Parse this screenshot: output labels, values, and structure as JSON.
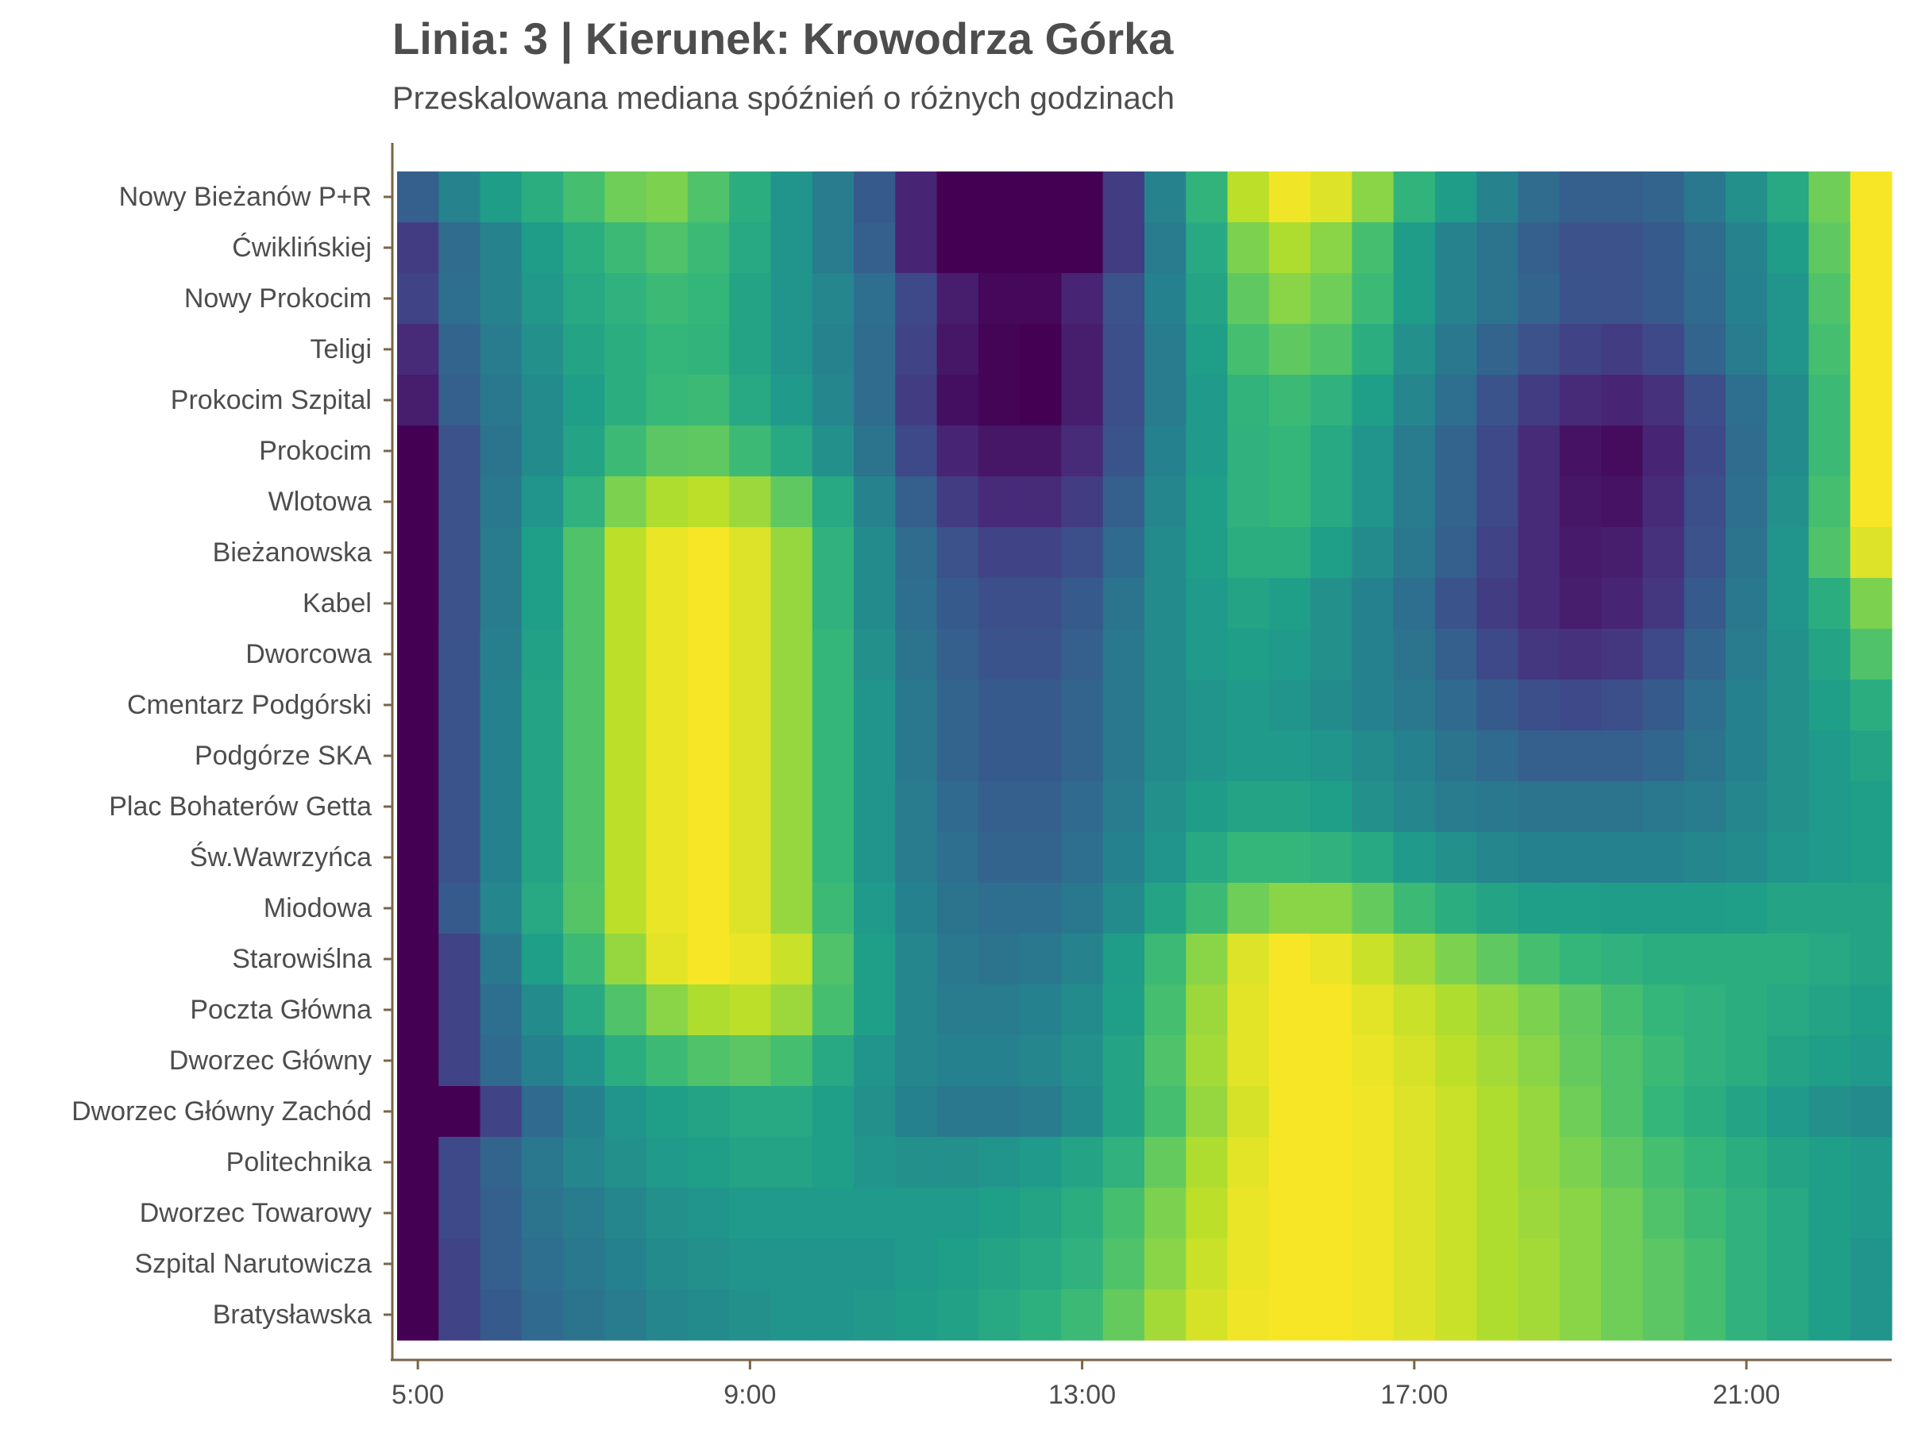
{
  "chart_data": {
    "type": "heatmap",
    "title": "Linia: 3 | Kierunek: Krowodrza Górka",
    "subtitle": "Przeskalowana mediana spóźnień o różnych godzinach",
    "xlabel": "",
    "ylabel": "",
    "colormap": "viridis",
    "grid": false,
    "x_hours": [
      5,
      5.5,
      6,
      6.5,
      7,
      7.5,
      8,
      8.5,
      9,
      9.5,
      10,
      10.5,
      11,
      11.5,
      12,
      12.5,
      13,
      13.5,
      14,
      14.5,
      15,
      15.5,
      16,
      16.5,
      17,
      17.5,
      18,
      18.5,
      19,
      19.5,
      20,
      20.5,
      21,
      21.5,
      22,
      22.5
    ],
    "x_ticks": [
      "5:00",
      "9:00",
      "13:00",
      "17:00",
      "21:00"
    ],
    "x_tick_hours": [
      5,
      9,
      13,
      17,
      21
    ],
    "xlim": [
      4.75,
      22.75
    ],
    "stops": [
      "Nowy Bieżanów P+R",
      "Ćwiklińskiej",
      "Nowy Prokocim",
      "Teligi",
      "Prokocim Szpital",
      "Prokocim",
      "Wlotowa",
      "Bieżanowska",
      "Kabel",
      "Dworcowa",
      "Cmentarz Podgórski",
      "Podgórze SKA",
      "Plac Bohaterów Getta",
      "Św.Wawrzyńca",
      "Miodowa",
      "Starowiślna",
      "Poczta Główna",
      "Dworzec Główny",
      "Dworzec Główny Zachód",
      "Politechnika",
      "Dworzec Towarowy",
      "Szpital Narutowicza",
      "Bratysławska"
    ],
    "values": [
      [
        0.3,
        0.45,
        0.55,
        0.62,
        0.7,
        0.78,
        0.8,
        0.72,
        0.62,
        0.52,
        0.42,
        0.28,
        0.1,
        0.0,
        0.0,
        0.0,
        0.0,
        0.18,
        0.45,
        0.65,
        0.9,
        0.98,
        0.95,
        0.82,
        0.65,
        0.55,
        0.45,
        0.35,
        0.3,
        0.3,
        0.32,
        0.4,
        0.5,
        0.6,
        0.78,
        0.99
      ],
      [
        0.18,
        0.35,
        0.45,
        0.55,
        0.62,
        0.68,
        0.72,
        0.68,
        0.6,
        0.52,
        0.42,
        0.3,
        0.1,
        0.0,
        0.0,
        0.0,
        0.0,
        0.18,
        0.42,
        0.6,
        0.8,
        0.88,
        0.82,
        0.7,
        0.55,
        0.45,
        0.38,
        0.3,
        0.25,
        0.25,
        0.28,
        0.35,
        0.45,
        0.55,
        0.75,
        0.99
      ],
      [
        0.2,
        0.36,
        0.45,
        0.53,
        0.6,
        0.64,
        0.68,
        0.66,
        0.58,
        0.52,
        0.46,
        0.36,
        0.22,
        0.08,
        0.02,
        0.02,
        0.1,
        0.25,
        0.44,
        0.58,
        0.75,
        0.82,
        0.78,
        0.68,
        0.55,
        0.45,
        0.38,
        0.32,
        0.26,
        0.25,
        0.28,
        0.34,
        0.44,
        0.52,
        0.72,
        0.99
      ],
      [
        0.12,
        0.32,
        0.42,
        0.5,
        0.58,
        0.62,
        0.66,
        0.65,
        0.58,
        0.52,
        0.45,
        0.35,
        0.2,
        0.06,
        0.01,
        0.0,
        0.08,
        0.24,
        0.42,
        0.56,
        0.7,
        0.75,
        0.72,
        0.62,
        0.5,
        0.4,
        0.32,
        0.25,
        0.2,
        0.18,
        0.22,
        0.32,
        0.42,
        0.52,
        0.7,
        0.99
      ],
      [
        0.08,
        0.3,
        0.4,
        0.48,
        0.56,
        0.62,
        0.67,
        0.68,
        0.6,
        0.54,
        0.46,
        0.35,
        0.18,
        0.04,
        0.01,
        0.0,
        0.08,
        0.24,
        0.42,
        0.54,
        0.65,
        0.68,
        0.64,
        0.56,
        0.46,
        0.36,
        0.26,
        0.18,
        0.12,
        0.1,
        0.14,
        0.24,
        0.36,
        0.48,
        0.68,
        0.99
      ],
      [
        0.0,
        0.25,
        0.38,
        0.48,
        0.58,
        0.68,
        0.74,
        0.75,
        0.68,
        0.6,
        0.5,
        0.38,
        0.22,
        0.1,
        0.06,
        0.06,
        0.12,
        0.26,
        0.44,
        0.54,
        0.64,
        0.66,
        0.6,
        0.52,
        0.42,
        0.32,
        0.22,
        0.12,
        0.05,
        0.03,
        0.1,
        0.22,
        0.35,
        0.48,
        0.68,
        0.99
      ],
      [
        0.0,
        0.25,
        0.4,
        0.52,
        0.64,
        0.8,
        0.88,
        0.9,
        0.85,
        0.75,
        0.6,
        0.45,
        0.3,
        0.18,
        0.12,
        0.12,
        0.18,
        0.3,
        0.46,
        0.56,
        0.64,
        0.66,
        0.6,
        0.52,
        0.42,
        0.32,
        0.22,
        0.12,
        0.06,
        0.05,
        0.12,
        0.24,
        0.36,
        0.5,
        0.7,
        0.99
      ],
      [
        0.0,
        0.25,
        0.42,
        0.56,
        0.72,
        0.9,
        0.97,
        0.99,
        0.95,
        0.84,
        0.64,
        0.48,
        0.35,
        0.25,
        0.2,
        0.2,
        0.24,
        0.34,
        0.48,
        0.56,
        0.62,
        0.62,
        0.56,
        0.48,
        0.4,
        0.3,
        0.2,
        0.12,
        0.07,
        0.08,
        0.14,
        0.25,
        0.38,
        0.52,
        0.72,
        0.95
      ],
      [
        0.0,
        0.25,
        0.42,
        0.56,
        0.72,
        0.9,
        0.97,
        0.99,
        0.95,
        0.84,
        0.64,
        0.48,
        0.36,
        0.28,
        0.24,
        0.24,
        0.28,
        0.38,
        0.48,
        0.54,
        0.58,
        0.56,
        0.5,
        0.44,
        0.36,
        0.26,
        0.18,
        0.12,
        0.08,
        0.1,
        0.16,
        0.28,
        0.4,
        0.52,
        0.62,
        0.8
      ],
      [
        0.0,
        0.26,
        0.43,
        0.57,
        0.72,
        0.9,
        0.97,
        0.99,
        0.95,
        0.84,
        0.66,
        0.5,
        0.38,
        0.3,
        0.26,
        0.26,
        0.3,
        0.4,
        0.48,
        0.54,
        0.56,
        0.54,
        0.5,
        0.44,
        0.38,
        0.3,
        0.22,
        0.16,
        0.14,
        0.16,
        0.22,
        0.32,
        0.42,
        0.5,
        0.58,
        0.72
      ],
      [
        0.0,
        0.26,
        0.44,
        0.58,
        0.72,
        0.9,
        0.97,
        0.99,
        0.95,
        0.84,
        0.66,
        0.52,
        0.4,
        0.32,
        0.28,
        0.28,
        0.32,
        0.4,
        0.48,
        0.52,
        0.54,
        0.52,
        0.48,
        0.44,
        0.4,
        0.34,
        0.28,
        0.24,
        0.22,
        0.24,
        0.28,
        0.36,
        0.44,
        0.5,
        0.56,
        0.62
      ],
      [
        0.0,
        0.26,
        0.44,
        0.58,
        0.72,
        0.9,
        0.97,
        0.99,
        0.95,
        0.84,
        0.66,
        0.52,
        0.4,
        0.32,
        0.28,
        0.28,
        0.32,
        0.4,
        0.48,
        0.52,
        0.54,
        0.54,
        0.52,
        0.48,
        0.44,
        0.38,
        0.34,
        0.3,
        0.3,
        0.3,
        0.33,
        0.38,
        0.44,
        0.5,
        0.54,
        0.58
      ],
      [
        0.0,
        0.26,
        0.44,
        0.58,
        0.72,
        0.9,
        0.97,
        0.99,
        0.95,
        0.84,
        0.66,
        0.52,
        0.42,
        0.34,
        0.3,
        0.3,
        0.34,
        0.42,
        0.5,
        0.55,
        0.58,
        0.58,
        0.56,
        0.5,
        0.46,
        0.42,
        0.4,
        0.38,
        0.38,
        0.38,
        0.4,
        0.42,
        0.46,
        0.5,
        0.54,
        0.56
      ],
      [
        0.0,
        0.26,
        0.44,
        0.58,
        0.72,
        0.9,
        0.97,
        0.99,
        0.95,
        0.84,
        0.66,
        0.52,
        0.42,
        0.36,
        0.32,
        0.32,
        0.36,
        0.44,
        0.52,
        0.6,
        0.66,
        0.66,
        0.64,
        0.6,
        0.54,
        0.5,
        0.46,
        0.44,
        0.44,
        0.44,
        0.44,
        0.46,
        0.48,
        0.52,
        0.54,
        0.56
      ],
      [
        0.0,
        0.28,
        0.46,
        0.6,
        0.73,
        0.9,
        0.97,
        0.99,
        0.95,
        0.84,
        0.68,
        0.54,
        0.44,
        0.38,
        0.36,
        0.36,
        0.4,
        0.48,
        0.58,
        0.68,
        0.78,
        0.82,
        0.82,
        0.76,
        0.68,
        0.62,
        0.58,
        0.56,
        0.56,
        0.55,
        0.55,
        0.55,
        0.56,
        0.58,
        0.58,
        0.58
      ],
      [
        0.0,
        0.2,
        0.4,
        0.56,
        0.68,
        0.84,
        0.96,
        0.99,
        0.97,
        0.92,
        0.72,
        0.56,
        0.46,
        0.4,
        0.38,
        0.4,
        0.45,
        0.55,
        0.68,
        0.82,
        0.95,
        0.99,
        0.97,
        0.92,
        0.86,
        0.8,
        0.75,
        0.7,
        0.66,
        0.64,
        0.62,
        0.62,
        0.62,
        0.62,
        0.6,
        0.58
      ],
      [
        0.0,
        0.2,
        0.36,
        0.48,
        0.6,
        0.72,
        0.82,
        0.88,
        0.9,
        0.85,
        0.7,
        0.56,
        0.46,
        0.42,
        0.42,
        0.44,
        0.48,
        0.56,
        0.7,
        0.85,
        0.96,
        0.99,
        0.99,
        0.96,
        0.92,
        0.88,
        0.84,
        0.8,
        0.75,
        0.7,
        0.66,
        0.64,
        0.62,
        0.6,
        0.58,
        0.56
      ],
      [
        0.0,
        0.2,
        0.34,
        0.44,
        0.52,
        0.62,
        0.68,
        0.72,
        0.74,
        0.7,
        0.6,
        0.52,
        0.46,
        0.44,
        0.44,
        0.46,
        0.5,
        0.58,
        0.72,
        0.86,
        0.96,
        0.99,
        0.99,
        0.97,
        0.94,
        0.9,
        0.86,
        0.82,
        0.76,
        0.72,
        0.68,
        0.64,
        0.62,
        0.58,
        0.56,
        0.54
      ],
      [
        0.0,
        0.0,
        0.2,
        0.34,
        0.44,
        0.52,
        0.56,
        0.58,
        0.6,
        0.6,
        0.56,
        0.5,
        0.44,
        0.4,
        0.4,
        0.42,
        0.48,
        0.58,
        0.7,
        0.84,
        0.94,
        0.99,
        0.99,
        0.98,
        0.95,
        0.92,
        0.88,
        0.84,
        0.78,
        0.72,
        0.66,
        0.62,
        0.58,
        0.54,
        0.5,
        0.48
      ],
      [
        0.0,
        0.22,
        0.32,
        0.4,
        0.46,
        0.5,
        0.54,
        0.56,
        0.58,
        0.58,
        0.56,
        0.52,
        0.5,
        0.5,
        0.52,
        0.54,
        0.58,
        0.64,
        0.76,
        0.88,
        0.96,
        0.99,
        0.99,
        0.98,
        0.95,
        0.92,
        0.88,
        0.84,
        0.8,
        0.75,
        0.7,
        0.66,
        0.62,
        0.58,
        0.56,
        0.54
      ],
      [
        0.0,
        0.22,
        0.3,
        0.38,
        0.42,
        0.46,
        0.5,
        0.52,
        0.54,
        0.54,
        0.54,
        0.54,
        0.54,
        0.54,
        0.56,
        0.58,
        0.62,
        0.7,
        0.8,
        0.9,
        0.97,
        0.99,
        0.99,
        0.98,
        0.95,
        0.92,
        0.88,
        0.85,
        0.82,
        0.78,
        0.72,
        0.68,
        0.64,
        0.6,
        0.56,
        0.54
      ],
      [
        0.0,
        0.2,
        0.3,
        0.36,
        0.4,
        0.44,
        0.48,
        0.5,
        0.52,
        0.52,
        0.52,
        0.52,
        0.54,
        0.56,
        0.58,
        0.6,
        0.64,
        0.72,
        0.82,
        0.92,
        0.97,
        0.99,
        0.99,
        0.98,
        0.95,
        0.92,
        0.88,
        0.86,
        0.82,
        0.78,
        0.74,
        0.7,
        0.64,
        0.6,
        0.56,
        0.52
      ],
      [
        0.0,
        0.2,
        0.28,
        0.34,
        0.38,
        0.42,
        0.46,
        0.48,
        0.5,
        0.52,
        0.52,
        0.53,
        0.55,
        0.57,
        0.6,
        0.63,
        0.68,
        0.76,
        0.86,
        0.94,
        0.98,
        0.99,
        0.99,
        0.98,
        0.95,
        0.92,
        0.88,
        0.86,
        0.82,
        0.78,
        0.74,
        0.7,
        0.64,
        0.6,
        0.56,
        0.52
      ]
    ]
  }
}
